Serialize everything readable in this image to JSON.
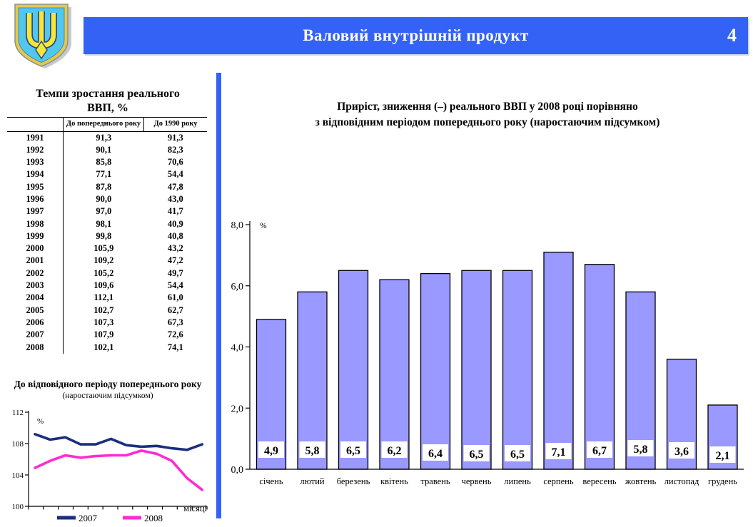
{
  "header": {
    "title": "Валовий внутрішній продукт",
    "page_number": "4"
  },
  "colors": {
    "header_blue": "#3462f5",
    "divider_blue": "#3462f5",
    "bar_fill": "#9999ff",
    "line_2007": "#1b2e7f",
    "line_2008": "#ff2bd1",
    "logo_shield_blue": "#52c6ee",
    "logo_trident_yellow": "#f7e635",
    "logo_border_gold": "#e3c94a"
  },
  "chart_data": [
    {
      "id": "gdp_growth_table",
      "type": "table",
      "title_line1": "Темпи зростання реального",
      "title_line2": "ВВП, %",
      "columns": [
        "",
        "До попереднього року",
        "До 1990 року"
      ],
      "rows": [
        [
          "1991",
          "91,3",
          "91,3"
        ],
        [
          "1992",
          "90,1",
          "82,3"
        ],
        [
          "1993",
          "85,8",
          "70,6"
        ],
        [
          "1994",
          "77,1",
          "54,4"
        ],
        [
          "1995",
          "87,8",
          "47,8"
        ],
        [
          "1996",
          "90,0",
          "43,0"
        ],
        [
          "1997",
          "97,0",
          "41,7"
        ],
        [
          "1998",
          "98,1",
          "40,9"
        ],
        [
          "1999",
          "99,8",
          "40,8"
        ],
        [
          "2000",
          "105,9",
          "43,2"
        ],
        [
          "2001",
          "109,2",
          "47,2"
        ],
        [
          "2002",
          "105,2",
          "49,7"
        ],
        [
          "2003",
          "109,6",
          "54,4"
        ],
        [
          "2004",
          "112,1",
          "61,0"
        ],
        [
          "2005",
          "102,7",
          "62,7"
        ],
        [
          "2006",
          "107,3",
          "67,3"
        ],
        [
          "2007",
          "107,9",
          "72,6"
        ],
        [
          "2008",
          "102,1",
          "74,1"
        ]
      ]
    },
    {
      "id": "mini_line_chart",
      "type": "line",
      "title": "До відповідного періоду попереднього року",
      "subtitle": "(наростаючим підсумком)",
      "ylabel": "%",
      "xlabel": "місяці",
      "ylim": [
        100,
        112
      ],
      "yticks": [
        100,
        104,
        108,
        112
      ],
      "grid": false,
      "legend_position": "bottom",
      "series": [
        {
          "name": "2007",
          "color": "#1b2e7f",
          "values": [
            109.2,
            108.5,
            108.8,
            107.9,
            107.9,
            108.6,
            107.8,
            107.6,
            107.7,
            107.4,
            107.2,
            107.9
          ]
        },
        {
          "name": "2008",
          "color": "#ff2bd1",
          "values": [
            104.9,
            105.8,
            106.5,
            106.2,
            106.4,
            106.5,
            106.5,
            107.1,
            106.7,
            105.8,
            103.6,
            102.1
          ]
        }
      ]
    },
    {
      "id": "main_bar_chart",
      "type": "bar",
      "title_line1": "Приріст, зниження (–) реального ВВП у 2008 році порівняно",
      "title_line2": "з відповідним періодом попереднього року (наростаючим підсумком)",
      "ylabel": "%",
      "ylim": [
        0,
        8
      ],
      "yticks": [
        0,
        2,
        4,
        6,
        8
      ],
      "ytick_labels": [
        "0,0",
        "2,0",
        "4,0",
        "6,0",
        "8,0"
      ],
      "grid": false,
      "bar_color": "#9999ff",
      "categories": [
        "січень",
        "лютий",
        "березень",
        "квітень",
        "травень",
        "червень",
        "липень",
        "серпень",
        "вересень",
        "жовтень",
        "листопад",
        "грудень"
      ],
      "values": [
        4.9,
        5.8,
        6.5,
        6.2,
        6.4,
        6.5,
        6.5,
        7.1,
        6.7,
        5.8,
        3.6,
        2.1
      ],
      "value_labels": [
        "4,9",
        "5,8",
        "6,5",
        "6,2",
        "6,4",
        "6,5",
        "6,5",
        "7,1",
        "6,7",
        "5,8",
        "3,6",
        "2,1"
      ],
      "value_label_dy": [
        0,
        0,
        0,
        0,
        4,
        5,
        5,
        2,
        0,
        -2,
        1,
        7
      ]
    }
  ]
}
